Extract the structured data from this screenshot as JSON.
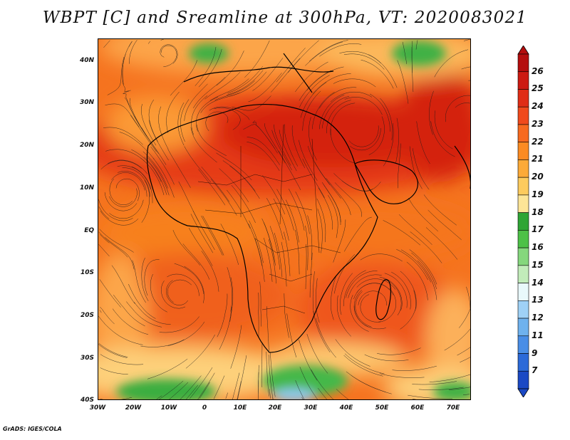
{
  "title": "WBPT [C] and Sreamline at 300hPa, VT: 2020083021",
  "credit": "GrADS: IGES/COLA",
  "map": {
    "lon_range": [
      -30,
      75
    ],
    "lat_range": [
      -40,
      45
    ],
    "lat_labels": [
      "40N",
      "30N",
      "20N",
      "10N",
      "EQ",
      "10S",
      "20S",
      "30S",
      "40S"
    ],
    "lon_labels": [
      "30W",
      "20W",
      "10W",
      "0",
      "10E",
      "20E",
      "30E",
      "40E",
      "50E",
      "60E",
      "70E"
    ]
  },
  "colorbar": {
    "labels": [
      "26",
      "25",
      "24",
      "23",
      "22",
      "21",
      "20",
      "19",
      "18",
      "17",
      "16",
      "15",
      "14",
      "13",
      "12",
      "11",
      "9",
      "7"
    ],
    "colors": [
      "#b40d0d",
      "#cc1a12",
      "#e02d16",
      "#f04a1c",
      "#f76a1f",
      "#fb8b22",
      "#fcaa38",
      "#fdcb5e",
      "#fde597",
      "#2fa535",
      "#4dc147",
      "#85d77d",
      "#c2ecba",
      "#e9f9fb",
      "#9fd1f6",
      "#6fb2ee",
      "#4a8ee6",
      "#2c6ad8",
      "#1b49c4"
    ]
  }
}
